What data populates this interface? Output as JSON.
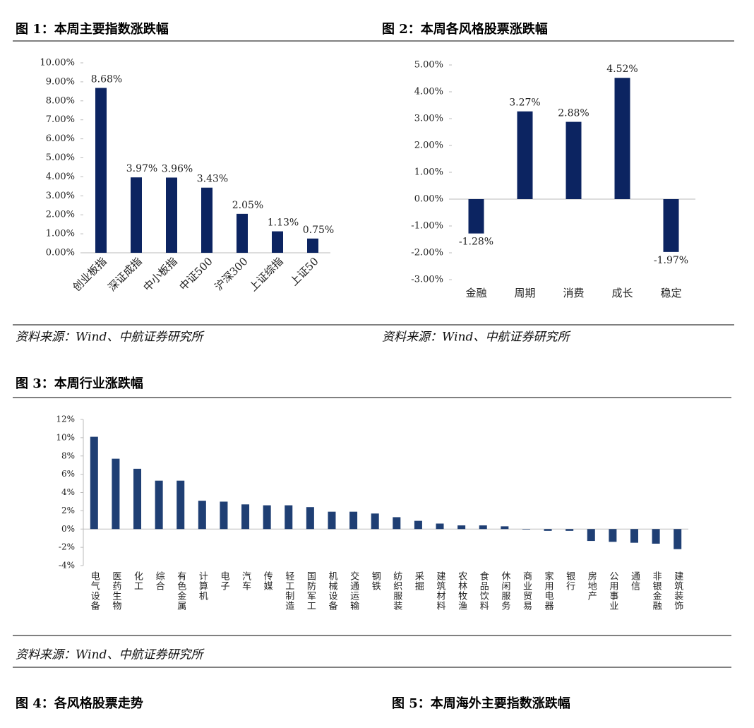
{
  "chart_data": [
    {
      "type": "bar",
      "title": "图 1：本周主要指数涨跌幅",
      "source": "资料来源：Wind、中航证券研究所",
      "categories": [
        "创业板指",
        "深证成指",
        "中小板指",
        "中证500",
        "沪深300",
        "上证综指",
        "上证50"
      ],
      "values": [
        8.68,
        3.97,
        3.96,
        3.43,
        2.05,
        1.13,
        0.75
      ],
      "value_labels": [
        "8.68%",
        "3.97%",
        "3.96%",
        "3.43%",
        "2.05%",
        "1.13%",
        "0.75%"
      ],
      "color": "#0c2461",
      "ylim": [
        0,
        10
      ],
      "yticks": [
        {
          "value": 0,
          "label": "0.00%"
        },
        {
          "value": 1,
          "label": "1.00%"
        },
        {
          "value": 2,
          "label": "2.00%"
        },
        {
          "value": 3,
          "label": "3.00%"
        },
        {
          "value": 4,
          "label": "4.00%"
        },
        {
          "value": 5,
          "label": "5.00%"
        },
        {
          "value": 6,
          "label": "6.00%"
        },
        {
          "value": 7,
          "label": "7.00%"
        },
        {
          "value": 8,
          "label": "8.00%"
        },
        {
          "value": 9,
          "label": "9.00%"
        },
        {
          "value": 10,
          "label": "10.00%"
        }
      ]
    },
    {
      "type": "bar",
      "title": "图 2：本周各风格股票涨跌幅",
      "source": "资料来源：Wind、中航证券研究所",
      "categories": [
        "金融",
        "周期",
        "消费",
        "成长",
        "稳定"
      ],
      "values": [
        -1.28,
        3.27,
        2.88,
        4.52,
        -1.97
      ],
      "value_labels": [
        "-1.28%",
        "3.27%",
        "2.88%",
        "4.52%",
        "-1.97%"
      ],
      "color": "#0c2461",
      "ylim": [
        -3,
        5
      ],
      "yticks": [
        {
          "value": -3,
          "label": "-3.00%"
        },
        {
          "value": -2,
          "label": "-2.00%"
        },
        {
          "value": -1,
          "label": "-1.00%"
        },
        {
          "value": 0,
          "label": "0.00%"
        },
        {
          "value": 1,
          "label": "1.00%"
        },
        {
          "value": 2,
          "label": "2.00%"
        },
        {
          "value": 3,
          "label": "3.00%"
        },
        {
          "value": 4,
          "label": "4.00%"
        },
        {
          "value": 5,
          "label": "5.00%"
        }
      ]
    },
    {
      "type": "bar",
      "title": "图 3：本周行业涨跌幅",
      "source": "资料来源：Wind、中航证券研究所",
      "categories": [
        "电气设备",
        "医药生物",
        "化工",
        "综合",
        "有色金属",
        "计算机",
        "电子",
        "汽车",
        "传媒",
        "轻工制造",
        "国防军工",
        "机械设备",
        "交通运输",
        "钢铁",
        "纺织服装",
        "采掘",
        "建筑材料",
        "农林牧渔",
        "食品饮料",
        "休闲服务",
        "商业贸易",
        "家用电器",
        "银行",
        "房地产",
        "公用事业",
        "通信",
        "非银金融",
        "建筑装饰"
      ],
      "values": [
        10.1,
        7.7,
        6.6,
        5.3,
        5.3,
        3.1,
        3.0,
        2.7,
        2.6,
        2.6,
        2.4,
        1.9,
        1.9,
        1.7,
        1.3,
        0.9,
        0.6,
        0.4,
        0.4,
        0.3,
        -0.05,
        -0.2,
        -0.2,
        -1.3,
        -1.4,
        -1.5,
        -1.6,
        -2.2
      ],
      "color": "#1f3f74",
      "ylim": [
        -4,
        12
      ],
      "yticks": [
        {
          "value": -4,
          "label": "-4%"
        },
        {
          "value": -2,
          "label": "-2%"
        },
        {
          "value": 0,
          "label": "0%"
        },
        {
          "value": 2,
          "label": "2%"
        },
        {
          "value": 4,
          "label": "4%"
        },
        {
          "value": 6,
          "label": "6%"
        },
        {
          "value": 8,
          "label": "8%"
        },
        {
          "value": 10,
          "label": "10%"
        },
        {
          "value": 12,
          "label": "12%"
        }
      ]
    }
  ],
  "more_figures": [
    "图 4：各风格股票走势",
    "图 5：本周海外主要指数涨跌幅"
  ]
}
